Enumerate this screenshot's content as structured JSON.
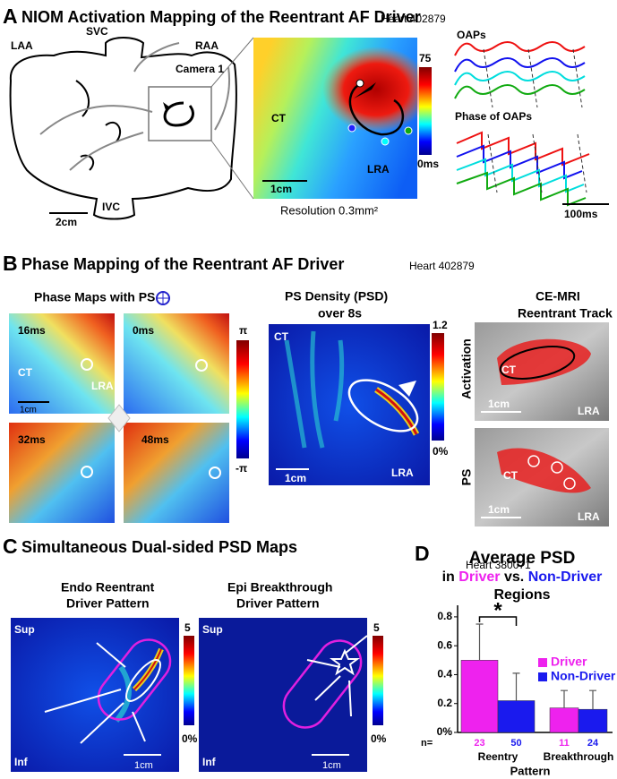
{
  "panel_a": {
    "letter": "A",
    "title": "NIOM Activation Mapping of the Reentrant AF Driver",
    "heart": "Heart 402879",
    "labels": [
      "LAA",
      "SVC",
      "RAA",
      "Camera 1",
      "IVC",
      "2cm"
    ],
    "map_labels": [
      "CT",
      "LRA",
      "1cm"
    ],
    "colorbar": [
      "75",
      "0ms"
    ],
    "resolution": "Resolution 0.3mm²",
    "oaps": "OAPs",
    "phase_oaps": "Phase of OAPs",
    "time_scale": "100ms"
  },
  "panel_b": {
    "letter": "B",
    "title": "Phase Mapping of the Reentrant AF Driver",
    "heart": "Heart 402879",
    "phase_title": "Phase Maps with PS",
    "times": [
      "16ms",
      "0ms",
      "32ms",
      "48ms"
    ],
    "map_labels": [
      "CT",
      "LRA",
      "1cm"
    ],
    "phase_colorbar": [
      "π",
      "-π"
    ],
    "psd_title": [
      "PS Density (PSD)",
      "over 8s"
    ],
    "psd_labels": [
      "CT",
      "LRA",
      "1cm"
    ],
    "psd_colorbar": [
      "1.2",
      "0%"
    ],
    "mri_title": [
      "CE-MRI",
      "Reentrant Track"
    ],
    "mri_rows": [
      "Activation",
      "PS"
    ],
    "mri_labels": [
      "CT",
      "1cm",
      "LRA"
    ]
  },
  "panel_c": {
    "letter": "C",
    "title": "Simultaneous Dual-sided PSD Maps",
    "heart": "Heart 380071",
    "maps": [
      {
        "title": [
          "Endo Reentrant",
          "Driver Pattern"
        ]
      },
      {
        "title": [
          "Epi Breakthrough",
          "Driver Pattern"
        ]
      }
    ],
    "orient": [
      "Sup",
      "Inf"
    ],
    "scale": "1cm",
    "colorbar": [
      "5",
      "0%"
    ]
  },
  "chart_data": {
    "type": "bar",
    "letter": "D",
    "title": "Average PSD",
    "subtitle_parts": [
      "in",
      "Driver",
      "vs.",
      "Non-Driver",
      "Regions"
    ],
    "categories": [
      "Reentry",
      "Breakthrough"
    ],
    "xlabel": "Pattern",
    "n_label": "n=",
    "series": [
      {
        "name": "Driver",
        "color": "#ee22ee",
        "values": [
          0.5,
          0.17
        ],
        "errors": [
          0.25,
          0.12
        ],
        "n": [
          23,
          11
        ]
      },
      {
        "name": "Non-Driver",
        "color": "#1a1aee",
        "values": [
          0.22,
          0.16
        ],
        "errors": [
          0.19,
          0.13
        ],
        "n": [
          50,
          24
        ]
      }
    ],
    "ylim": [
      0,
      0.88
    ],
    "yticks": [
      {
        "value": 0,
        "label": "0%"
      },
      0.2,
      0.4,
      0.6,
      0.8
    ],
    "significance": "*"
  }
}
